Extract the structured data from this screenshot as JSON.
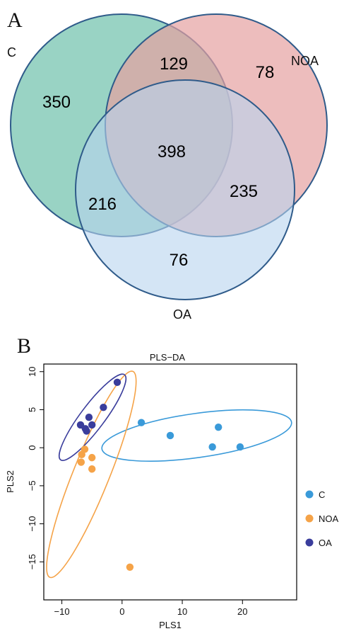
{
  "panels": {
    "A": {
      "letter": "A",
      "venn": {
        "sets": [
          {
            "key": "C",
            "label": "C",
            "color": "#7cc6b3"
          },
          {
            "key": "NOA",
            "label": "NOA",
            "color": "#e6a1a1"
          },
          {
            "key": "OA",
            "label": "OA",
            "color": "#b8d4ee"
          }
        ],
        "regions": {
          "C_only": "350",
          "NOA_only": "78",
          "OA_only": "76",
          "C_NOA": "129",
          "C_OA": "216",
          "NOA_OA": "235",
          "C_NOA_OA": "398"
        }
      }
    },
    "B": {
      "letter": "B"
    }
  },
  "chart_data": {
    "type": "scatter",
    "title": "PLS−DA",
    "xlabel": "PLS1",
    "ylabel": "PLS2",
    "xlim": [
      -13,
      29
    ],
    "ylim": [
      -20,
      11
    ],
    "xticks": [
      -10,
      0,
      10,
      20
    ],
    "yticks": [
      -15,
      -10,
      -5,
      0,
      5,
      10
    ],
    "xtick_labels": [
      "−10",
      "0",
      "10",
      "20"
    ],
    "ytick_labels": [
      "−15",
      "−10",
      "−5",
      "0",
      "5",
      "10"
    ],
    "legend_position": "right",
    "series": [
      {
        "name": "C",
        "color": "#3a9ad9",
        "points": [
          [
            3.2,
            3.3
          ],
          [
            8.0,
            1.6
          ],
          [
            15.0,
            0.1
          ],
          [
            16.0,
            2.7
          ],
          [
            19.6,
            0.1
          ]
        ],
        "ellipse": {
          "cx": 12.4,
          "cy": 1.6,
          "rx": 15.9,
          "ry": 2.9,
          "angle_deg": -8
        }
      },
      {
        "name": "NOA",
        "color": "#f5a348",
        "points": [
          [
            -6.2,
            -0.2
          ],
          [
            -6.7,
            -0.9
          ],
          [
            -6.8,
            -1.9
          ],
          [
            -5.0,
            -1.3
          ],
          [
            -5.0,
            -2.8
          ],
          [
            1.3,
            -15.7
          ]
        ],
        "ellipse": {
          "cx": -5.1,
          "cy": -3.5,
          "rx": 3.0,
          "ry": 14.6,
          "angle_deg": 22
        }
      },
      {
        "name": "OA",
        "color": "#3a3d9c",
        "points": [
          [
            -6.9,
            3.0
          ],
          [
            -6.1,
            2.5
          ],
          [
            -5.5,
            4.0
          ],
          [
            -5.0,
            3.0
          ],
          [
            -5.9,
            2.2
          ],
          [
            -3.1,
            5.3
          ],
          [
            -0.8,
            8.6
          ]
        ],
        "ellipse": {
          "cx": -4.9,
          "cy": 4.0,
          "rx": 2.0,
          "ry": 7.0,
          "angle_deg": 37
        }
      }
    ]
  }
}
